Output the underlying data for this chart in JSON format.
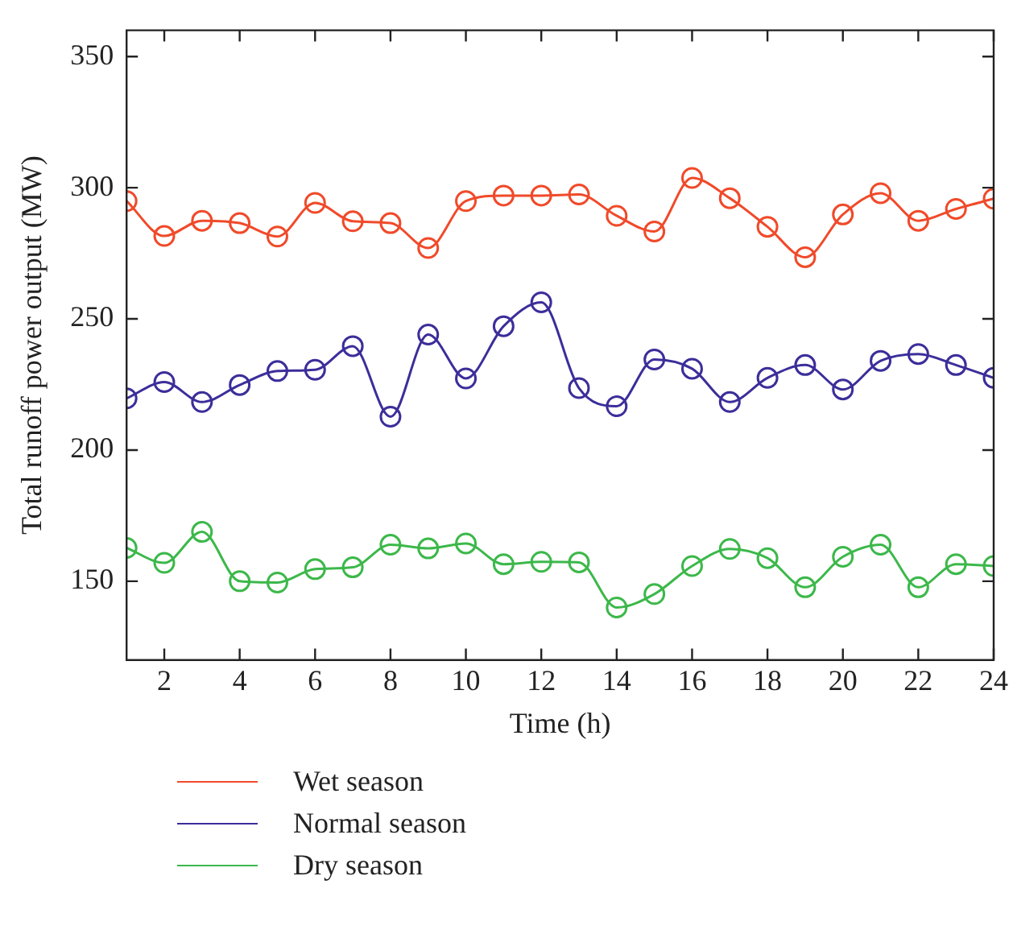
{
  "chart_data": {
    "type": "line",
    "xlabel": "Time (h)",
    "ylabel": "Total runoff power output (MW)",
    "x": [
      1,
      2,
      3,
      4,
      5,
      6,
      7,
      8,
      9,
      10,
      11,
      12,
      13,
      14,
      15,
      16,
      17,
      18,
      19,
      20,
      21,
      22,
      23,
      24
    ],
    "xlim": [
      1,
      24
    ],
    "xticks": [
      2,
      4,
      6,
      8,
      10,
      12,
      14,
      16,
      18,
      20,
      22,
      24
    ],
    "ylim": [
      120,
      360
    ],
    "yticks": [
      150,
      200,
      250,
      300,
      350
    ],
    "grid": false,
    "legend": "bottom left",
    "marker": "circle",
    "line_style": "solid",
    "series": [
      {
        "name": "Wet season",
        "color": "#f04a2a",
        "values": [
          294.9,
          281.6,
          287.4,
          286.5,
          281.4,
          294.2,
          287.2,
          286.5,
          277,
          294.9,
          297,
          297,
          297.4,
          289.3,
          283.3,
          303.7,
          296,
          285.1,
          273.5,
          289.8,
          297.9,
          287.4,
          291.9,
          295.8
        ]
      },
      {
        "name": "Normal season",
        "color": "#3b2e9a",
        "values": [
          219.7,
          225.9,
          218.3,
          224.8,
          230.1,
          230.6,
          239.6,
          212.7,
          244,
          227.3,
          247.2,
          256.3,
          223.6,
          216.7,
          234.5,
          231,
          218.3,
          227.5,
          232.4,
          223.1,
          234,
          236.6,
          232.4,
          227.5
        ]
      },
      {
        "name": "Dry season",
        "color": "#3cb84a",
        "values": [
          162.7,
          157,
          168.8,
          150,
          149.5,
          154.6,
          155.3,
          163.9,
          162.5,
          164.4,
          156.5,
          157.4,
          157.2,
          140,
          145.1,
          155.8,
          162.3,
          158.8,
          147.7,
          159.3,
          163.9,
          147.7,
          156.5,
          155.8
        ]
      }
    ]
  }
}
